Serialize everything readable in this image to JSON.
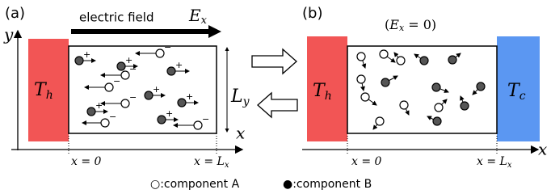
{
  "panel_a": {
    "label": "(a)",
    "field_text": "electric field",
    "field_symbol": {
      "main": "E",
      "sub": "x"
    },
    "y_axis": "y",
    "x_axis": "x",
    "hot": {
      "main": "T",
      "sub": "h"
    },
    "height": {
      "main": "L",
      "sub": "y"
    },
    "x_left": "x = 0",
    "x_right": {
      "main": "x = L",
      "sub": "x"
    }
  },
  "panel_b": {
    "label": "(b)",
    "condition": {
      "open": "(",
      "main": "E",
      "sub": "x",
      "rest": " = 0)"
    },
    "x_axis": "x",
    "hot": {
      "main": "T",
      "sub": "h"
    },
    "cold": {
      "main": "T",
      "sub": "c"
    },
    "x_left": "x = 0",
    "x_right": {
      "main": "x = L",
      "sub": "x"
    }
  },
  "signs": {
    "plus": "+",
    "minus": "−"
  },
  "legend": {
    "a": "○:component A",
    "b": "●:component B"
  }
}
